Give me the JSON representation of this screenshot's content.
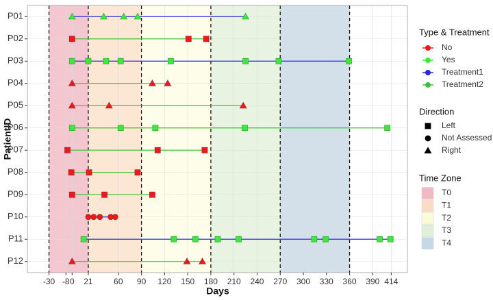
{
  "chart_data": {
    "type": "swimmer",
    "x_label": "Days",
    "y_label": "PatientID",
    "xlim": [
      -58,
      435
    ],
    "xticks": [
      -30,
      -8,
      0,
      21,
      60,
      90,
      120,
      150,
      180,
      210,
      240,
      270,
      300,
      330,
      360,
      390,
      414
    ],
    "grid": true,
    "zones": [
      {
        "name": "T0",
        "range": [
          -30,
          21
        ],
        "color": "#f4c6cf",
        "swatch": "#f2b8c3"
      },
      {
        "name": "T1",
        "range": [
          21,
          90
        ],
        "color": "#fbe7d4",
        "swatch": "#f9dcc4"
      },
      {
        "name": "T2",
        "range": [
          90,
          180
        ],
        "color": "#fdfde9",
        "swatch": "#fbfbd9"
      },
      {
        "name": "T3",
        "range": [
          180,
          270
        ],
        "color": "#e8f3e2",
        "swatch": "#e0efd8"
      },
      {
        "name": "T4",
        "range": [
          270,
          360
        ],
        "color": "#d3e0ea",
        "swatch": "#c6d7e6"
      }
    ],
    "legend_titles": {
      "type_treatment": "Type & Treatment",
      "direction": "Direction",
      "zone": "Time Zone"
    },
    "types": [
      {
        "name": "No",
        "color": "#f2171c"
      },
      {
        "name": "Yes",
        "color": "#3fe83f"
      }
    ],
    "treatments": [
      {
        "name": "Treatment1",
        "color": "#2a2ae0"
      },
      {
        "name": "Treatment2",
        "color": "#3cc23c"
      }
    ],
    "directions": [
      {
        "name": "Left",
        "shape": "square"
      },
      {
        "name": "Not Assessed",
        "shape": "circle"
      },
      {
        "name": "Right",
        "shape": "triangle"
      }
    ],
    "patients": [
      {
        "id": "P01",
        "label_color": "#3fb0c8",
        "type": 1,
        "treatment": 0,
        "direction": 2,
        "days": [
          0,
          41,
          67,
          85,
          225
        ]
      },
      {
        "id": "P02",
        "label_color": "#e06666",
        "type": 0,
        "treatment": 1,
        "direction": 0,
        "days": [
          0,
          151,
          174
        ]
      },
      {
        "id": "P03",
        "label_color": "#3fb0c8",
        "type": 1,
        "treatment": 0,
        "direction": 0,
        "days": [
          0,
          21,
          44,
          63,
          128,
          225,
          268,
          359
        ]
      },
      {
        "id": "P04",
        "label_color": "#3fb0c8",
        "type": 0,
        "treatment": 1,
        "direction": 2,
        "days": [
          0,
          104,
          124
        ]
      },
      {
        "id": "P05",
        "label_color": "#e06666",
        "type": 0,
        "treatment": 1,
        "direction": 2,
        "days": [
          0,
          48,
          222
        ]
      },
      {
        "id": "P06",
        "label_color": "#e06666",
        "type": 1,
        "treatment": 1,
        "direction": 0,
        "days": [
          0,
          63,
          108,
          224,
          409
        ]
      },
      {
        "id": "P07",
        "label_color": "#e06666",
        "type": 0,
        "treatment": 1,
        "direction": 0,
        "days": [
          -6,
          111,
          172
        ]
      },
      {
        "id": "P08",
        "label_color": "#e06666",
        "type": 0,
        "treatment": 1,
        "direction": 0,
        "days": [
          -1,
          22,
          85
        ]
      },
      {
        "id": "P09",
        "label_color": "#3fb0c8",
        "type": 0,
        "treatment": 1,
        "direction": 0,
        "days": [
          0,
          42,
          104
        ]
      },
      {
        "id": "P10",
        "label_color": "#e06666",
        "type": 0,
        "treatment": 0,
        "direction": 1,
        "days": [
          21,
          28,
          36,
          50,
          56
        ]
      },
      {
        "id": "P11",
        "label_color": "#e06666",
        "type": 1,
        "treatment": 0,
        "direction": 0,
        "days": [
          15,
          132,
          160,
          189,
          216,
          314,
          329,
          399,
          413
        ]
      },
      {
        "id": "P12",
        "label_color": "#e06666",
        "type": 0,
        "treatment": 1,
        "direction": 2,
        "days": [
          0,
          149,
          169
        ]
      }
    ]
  }
}
